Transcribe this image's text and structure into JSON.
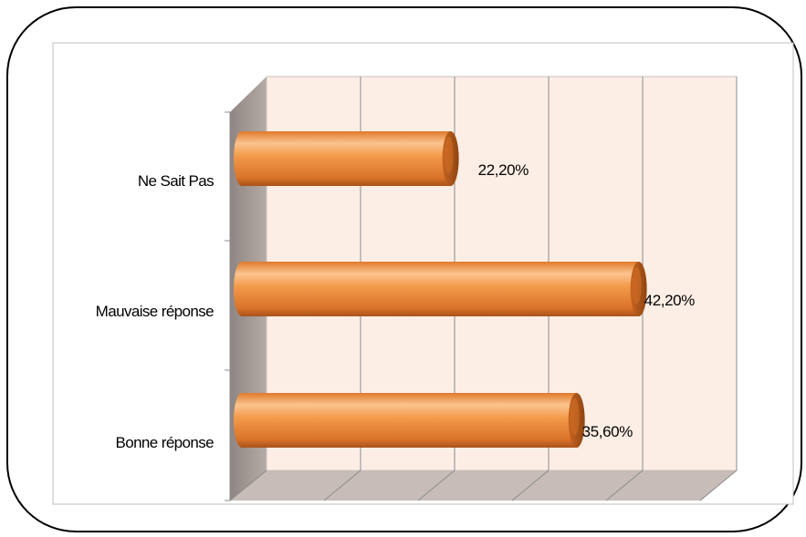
{
  "chart_data": {
    "type": "bar",
    "orientation": "horizontal",
    "style": "3d-cylinder",
    "categories": [
      "Ne Sait Pas",
      "Mauvaise réponse",
      "Bonne réponse"
    ],
    "values": [
      22.2,
      42.2,
      35.6
    ],
    "value_labels": [
      "22,20%",
      "42,20%",
      "35,60%"
    ],
    "xlim": [
      0,
      50
    ],
    "grid": true,
    "legend": "none",
    "title": "",
    "xlabel": "",
    "ylabel": "",
    "colors": {
      "bar": "#f0883a",
      "bar_highlight": "#fbc48f",
      "bar_shadow": "#b85a1c",
      "wall_back": "#fdeee5",
      "wall_side": "#a59b97",
      "floor": "#c7bcb8",
      "gridline": "#8c8c8c"
    }
  }
}
